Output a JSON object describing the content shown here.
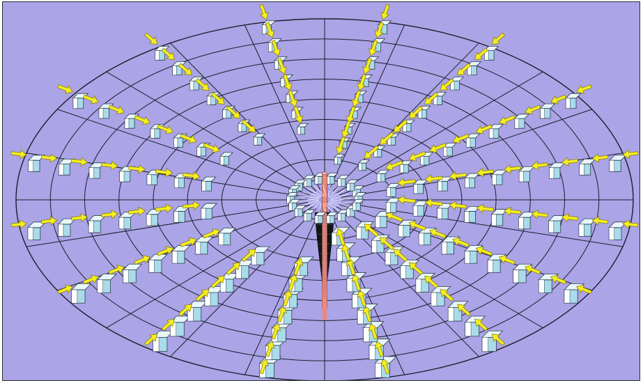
{
  "figure": {
    "background_color": "#aba4e6",
    "frame_color": "#2a2a2a",
    "grid_color": "#1c1c2c",
    "rotation_axis_color": "#ea8a82",
    "vortex_funnel_color": "#141414",
    "particle_top_color": "#e8f6fb",
    "particle_side_color": "#a9dbea",
    "particle_front_color": "#ffffff",
    "arrow_color": "#f4ee22",
    "arrow_outline_color": "#8a7d10"
  },
  "grid": {
    "ring_count": 9,
    "spoke_count": 24
  },
  "rays": [
    {
      "side": "left",
      "particles_outer_to_inner": 7,
      "arrow_direction": "inward"
    },
    {
      "side": "left",
      "particles_outer_to_inner": 7,
      "arrow_direction": "inward"
    },
    {
      "side": "left",
      "particles_outer_to_inner": 7,
      "arrow_direction": "inward"
    },
    {
      "side": "left",
      "particles_outer_to_inner": 7,
      "arrow_direction": "inward"
    },
    {
      "side": "right",
      "particles_outer_to_inner": 9,
      "arrow_direction": "inward"
    },
    {
      "side": "right",
      "particles_outer_to_inner": 9,
      "arrow_direction": "inward"
    },
    {
      "side": "right",
      "particles_outer_to_inner": 9,
      "arrow_direction": "inward"
    },
    {
      "side": "right",
      "particles_outer_to_inner": 9,
      "arrow_direction": "inward"
    }
  ]
}
